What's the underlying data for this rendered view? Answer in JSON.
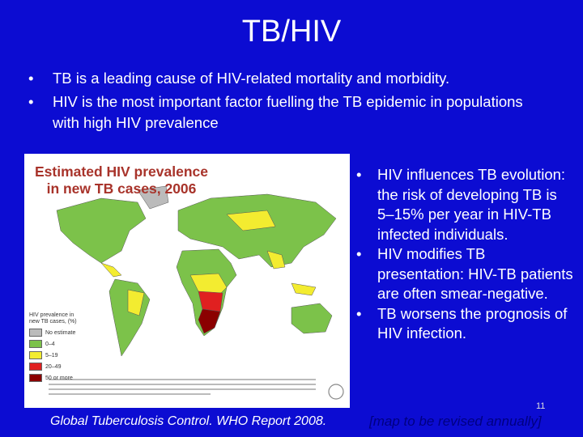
{
  "title": "TB/HIV",
  "bullets": [
    "TB is a leading cause of HIV-related mortality and morbidity.",
    "HIV is the most important factor fuelling the TB epidemic in populations with high HIV prevalence"
  ],
  "map": {
    "title": "Estimated HIV prevalence in new TB cases, 2006",
    "legend_title": "HIV prevalence in new TB cases, (%)",
    "legend": [
      "No estimate",
      "0–4",
      "5–19",
      "20–49",
      "50 or more"
    ]
  },
  "side_bullets": [
    "HIV influences TB evolution: the risk of developing TB is 5–15% per year in HIV-TB infected individuals.",
    "HIV modifies TB presentation: HIV-TB patients are often smear-negative.",
    "TB worsens the prognosis of HIV infection."
  ],
  "page_number": "11",
  "footer": {
    "source": "Global Tuberculosis Control. WHO Report 2008.",
    "note": "[map to be revised annually]"
  }
}
